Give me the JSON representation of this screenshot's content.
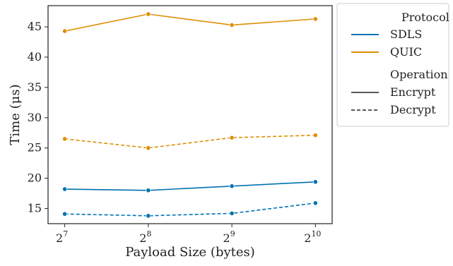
{
  "chart_data": {
    "type": "line",
    "xlabel": "Payload Size (bytes)",
    "ylabel": "Time (μs)",
    "x": [
      7,
      8,
      9,
      10
    ],
    "x_tick_base": "2",
    "x_tick_exponents": [
      "7",
      "8",
      "9",
      "10"
    ],
    "ylim": [
      12.5,
      48.5
    ],
    "yticks": [
      15,
      20,
      25,
      30,
      35,
      40,
      45
    ],
    "legend_position": "outside-right",
    "legend": {
      "protocol_title": "Protocol",
      "operation_title": "Operation",
      "protocols": [
        {
          "name": "SDLS",
          "color": "#0173b2"
        },
        {
          "name": "QUIC",
          "color": "#de8f05"
        }
      ],
      "operations": [
        {
          "name": "Encrypt",
          "dash": "solid"
        },
        {
          "name": "Decrypt",
          "dash": "dashed"
        }
      ]
    },
    "series": [
      {
        "protocol": "QUIC",
        "operation": "Encrypt",
        "values": [
          44.3,
          47.1,
          45.3,
          46.3
        ]
      },
      {
        "protocol": "QUIC",
        "operation": "Decrypt",
        "values": [
          26.5,
          25.0,
          26.7,
          27.1
        ]
      },
      {
        "protocol": "SDLS",
        "operation": "Encrypt",
        "values": [
          18.2,
          18.0,
          18.7,
          19.4
        ]
      },
      {
        "protocol": "SDLS",
        "operation": "Decrypt",
        "values": [
          14.1,
          13.8,
          14.2,
          15.9
        ]
      }
    ]
  }
}
